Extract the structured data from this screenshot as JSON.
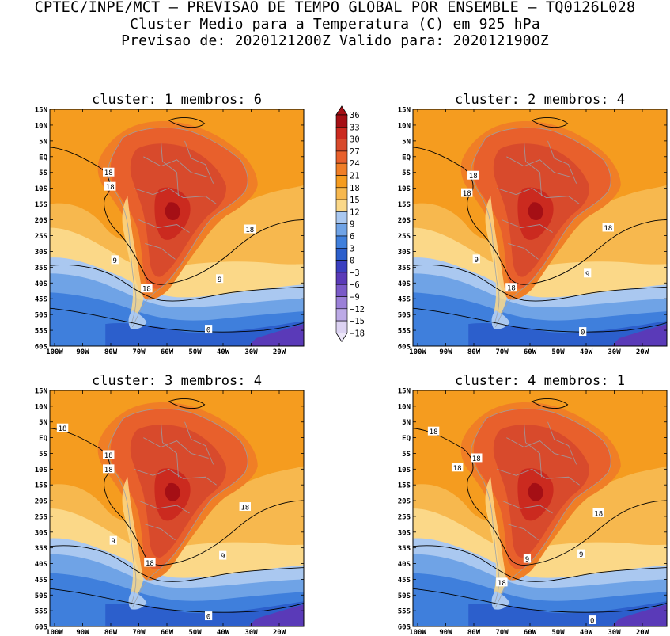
{
  "title": {
    "line1": "CPTEC/INPE/MCT – PREVISAO DE TEMPO GLOBAL POR ENSEMBLE – TQ0126L028",
    "line2": "Cluster Medio para a Temperatura (C) em 925 hPa",
    "line3": "Previsao de: 2020121200Z   Valido para: 2020121900Z"
  },
  "panels": [
    {
      "label": "cluster: 1   membros: 6"
    },
    {
      "label": "cluster: 2   membros: 4"
    },
    {
      "label": "cluster: 3   membros: 4"
    },
    {
      "label": "cluster: 4   membros: 1"
    }
  ],
  "axes": {
    "lat_labels": [
      "15N",
      "10N",
      "5N",
      "EQ",
      "5S",
      "10S",
      "15S",
      "20S",
      "25S",
      "30S",
      "35S",
      "40S",
      "45S",
      "50S",
      "55S",
      "60S"
    ],
    "lon_labels": [
      "100W",
      "90W",
      "80W",
      "70W",
      "60W",
      "50W",
      "40W",
      "30W",
      "20W"
    ]
  },
  "colorbar": {
    "levels": [
      "36",
      "33",
      "30",
      "27",
      "24",
      "21",
      "18",
      "15",
      "12",
      "9",
      "6",
      "3",
      "0",
      "−3",
      "−6",
      "−9",
      "−12",
      "−15",
      "−18"
    ],
    "colors": [
      "#a50f15",
      "#cb2a1f",
      "#d84a2c",
      "#e8602c",
      "#f07e26",
      "#f59c1f",
      "#f7b84e",
      "#fbd888",
      "#aac8f0",
      "#6fa3e6",
      "#3f7fdc",
      "#2c5fcc",
      "#3a3fc0",
      "#5a3ab8",
      "#7a5ac8",
      "#9b80d8",
      "#bcaae6",
      "#dcd2f2"
    ]
  },
  "contour_labels": {
    "panel1": [
      "18",
      "18",
      "18",
      "9",
      "9",
      "18",
      "0"
    ],
    "panel2": [
      "18",
      "18",
      "18",
      "9",
      "9",
      "18",
      "0"
    ],
    "panel3": [
      "18",
      "18",
      "18",
      "18",
      "9",
      "9",
      "18",
      "0"
    ],
    "panel4": [
      "18",
      "18",
      "18",
      "18",
      "9",
      "9",
      "18",
      "0"
    ]
  }
}
